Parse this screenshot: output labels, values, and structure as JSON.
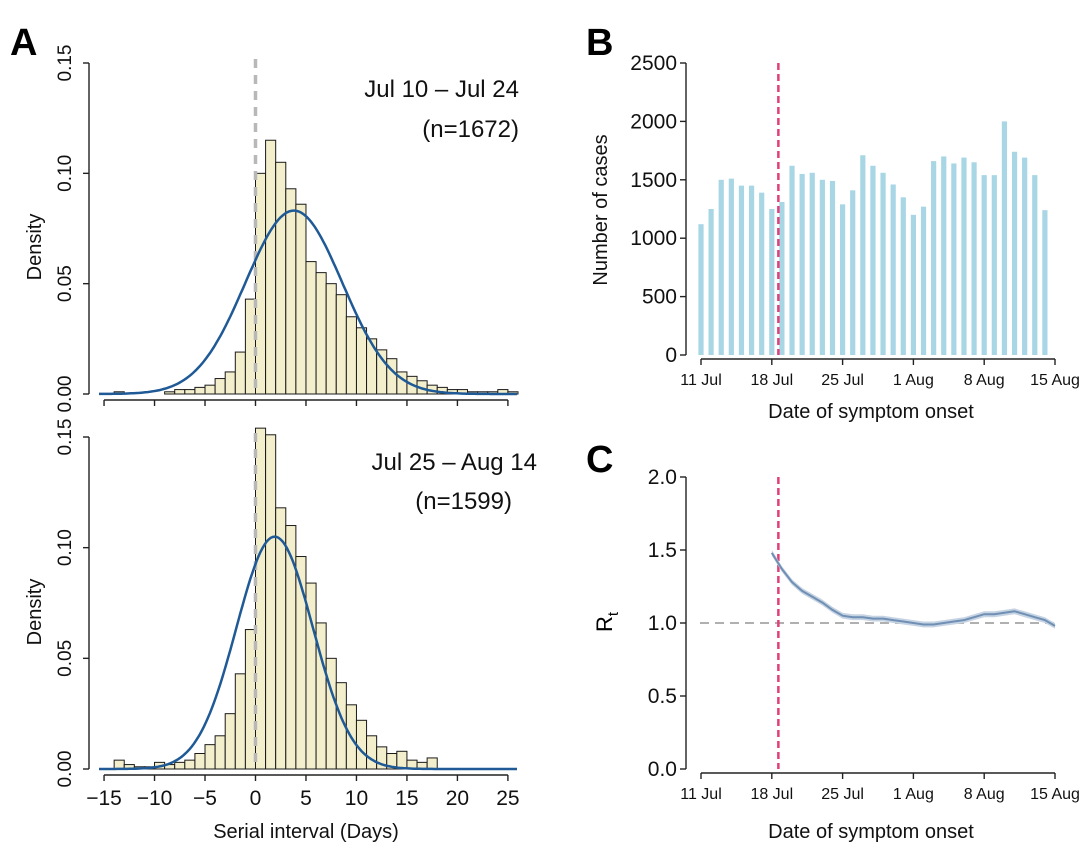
{
  "panel_labels": {
    "a": "A",
    "b": "B",
    "c": "C"
  },
  "chart_data": [
    {
      "id": "A1",
      "type": "bar",
      "panel": "A",
      "annotation": [
        "Jul 10 – Jul 24",
        "(n=1672)"
      ],
      "ylabel": "Density",
      "xlabel": "",
      "xlim": [
        -15.5,
        26
      ],
      "ylim": [
        0,
        0.15
      ],
      "yticks": [
        "0.00",
        "0.05",
        "0.10",
        "0.15"
      ],
      "xticks": [
        -15,
        -10,
        -5,
        0,
        5,
        10,
        15,
        20,
        25
      ],
      "bin_width": 1,
      "bins_left": [
        -14,
        -13,
        -12,
        -11,
        -10,
        -9,
        -8,
        -7,
        -6,
        -5,
        -4,
        -3,
        -2,
        -1,
        0,
        1,
        2,
        3,
        4,
        5,
        6,
        7,
        8,
        9,
        10,
        11,
        12,
        13,
        14,
        15,
        16,
        17,
        18,
        19,
        20,
        21,
        22,
        23,
        24,
        25
      ],
      "density": [
        0.001,
        0,
        0,
        0,
        0,
        0.001,
        0.002,
        0.002,
        0.003,
        0.004,
        0.007,
        0.01,
        0.019,
        0.043,
        0.1,
        0.115,
        0.105,
        0.093,
        0.086,
        0.06,
        0.055,
        0.05,
        0.045,
        0.035,
        0.03,
        0.025,
        0.02,
        0.016,
        0.01,
        0.008,
        0.006,
        0.004,
        0.003,
        0.002,
        0.002,
        0.001,
        0.001,
        0.001,
        0.002,
        0.001
      ],
      "fit": {
        "mean": 3.8,
        "sd": 4.8,
        "scale": 1.0
      },
      "reference_x": 0
    },
    {
      "id": "A2",
      "type": "bar",
      "panel": "A",
      "annotation": [
        "Jul 25 – Aug 14",
        "(n=1599)"
      ],
      "ylabel": "Density",
      "xlabel": "Serial interval (Days)",
      "xlim": [
        -15.5,
        26
      ],
      "ylim": [
        0,
        0.15
      ],
      "yticks": [
        "0.00",
        "0.05",
        "0.10",
        "0.15"
      ],
      "xticks": [
        -15,
        -10,
        -5,
        0,
        5,
        10,
        15,
        20,
        25
      ],
      "bin_width": 1,
      "bins_left": [
        -14,
        -13,
        -12,
        -11,
        -10,
        -9,
        -8,
        -7,
        -6,
        -5,
        -4,
        -3,
        -2,
        -1,
        0,
        1,
        2,
        3,
        4,
        5,
        6,
        7,
        8,
        9,
        10,
        11,
        12,
        13,
        14,
        15,
        16,
        17,
        18,
        19,
        20,
        21,
        22,
        23,
        24,
        25
      ],
      "density": [
        0.004,
        0.002,
        0.001,
        0.001,
        0.003,
        0.002,
        0.003,
        0.004,
        0.007,
        0.011,
        0.015,
        0.025,
        0.043,
        0.063,
        0.154,
        0.151,
        0.118,
        0.11,
        0.096,
        0.084,
        0.066,
        0.05,
        0.039,
        0.029,
        0.022,
        0.015,
        0.01,
        0.007,
        0.008,
        0.004,
        0.003,
        0.005,
        0,
        0,
        0,
        0,
        0,
        0,
        0,
        0
      ],
      "fit": {
        "mean": 1.9,
        "sd": 3.8,
        "scale": 1.0
      },
      "reference_x": 0
    },
    {
      "id": "B",
      "type": "bar",
      "panel": "B",
      "ylabel": "Number of cases",
      "xlabel": "Date of symptom onset",
      "ylim": [
        0,
        2500
      ],
      "yticks": [
        0,
        500,
        1000,
        1500,
        2000,
        2500
      ],
      "xtick_labels": [
        "11 Jul",
        "18 Jul",
        "25 Jul",
        "1 Aug",
        "8 Aug",
        "15 Aug"
      ],
      "dates": [
        "10 Jul",
        "11 Jul",
        "12 Jul",
        "13 Jul",
        "14 Jul",
        "15 Jul",
        "16 Jul",
        "17 Jul",
        "18 Jul",
        "19 Jul",
        "20 Jul",
        "21 Jul",
        "22 Jul",
        "23 Jul",
        "24 Jul",
        "25 Jul",
        "26 Jul",
        "27 Jul",
        "28 Jul",
        "29 Jul",
        "30 Jul",
        "31 Jul",
        "1 Aug",
        "2 Aug",
        "3 Aug",
        "4 Aug",
        "5 Aug",
        "6 Aug",
        "7 Aug",
        "8 Aug",
        "9 Aug",
        "10 Aug",
        "11 Aug",
        "12 Aug",
        "13 Aug",
        "14 Aug"
      ],
      "values": [
        1120,
        1250,
        1500,
        1510,
        1450,
        1450,
        1390,
        1250,
        1310,
        1620,
        1550,
        1560,
        1500,
        1490,
        1290,
        1410,
        1710,
        1620,
        1560,
        1460,
        1350,
        1200,
        1270,
        1660,
        1700,
        1640,
        1690,
        1650,
        1540,
        1540,
        2000,
        1740,
        1690,
        1540,
        1240,
        0
      ],
      "bar_color": "#a9d6e5",
      "marker_date": "19 Jul",
      "marker_color": "#e0407a"
    },
    {
      "id": "C",
      "type": "line",
      "panel": "C",
      "ylabel_main": "R",
      "ylabel_sub": "t",
      "xlabel": "Date of symptom onset",
      "ylim": [
        0,
        2.0
      ],
      "yticks": [
        "0.0",
        "0.5",
        "1.0",
        "1.5",
        "2.0"
      ],
      "xtick_labels": [
        "11 Jul",
        "18 Jul",
        "25 Jul",
        "1 Aug",
        "8 Aug",
        "15 Aug"
      ],
      "dates": [
        "17 Jul",
        "18 Jul",
        "19 Jul",
        "20 Jul",
        "21 Jul",
        "22 Jul",
        "23 Jul",
        "24 Jul",
        "25 Jul",
        "26 Jul",
        "27 Jul",
        "28 Jul",
        "29 Jul",
        "30 Jul",
        "31 Jul",
        "1 Aug",
        "2 Aug",
        "3 Aug",
        "4 Aug",
        "5 Aug",
        "6 Aug",
        "7 Aug",
        "8 Aug",
        "9 Aug",
        "10 Aug",
        "11 Aug",
        "12 Aug",
        "13 Aug",
        "14 Aug"
      ],
      "values": [
        1.48,
        1.37,
        1.28,
        1.22,
        1.18,
        1.14,
        1.09,
        1.05,
        1.04,
        1.04,
        1.03,
        1.03,
        1.02,
        1.01,
        1.0,
        0.99,
        0.99,
        1.0,
        1.01,
        1.02,
        1.04,
        1.06,
        1.06,
        1.07,
        1.08,
        1.06,
        1.04,
        1.02,
        0.98
      ],
      "reference_y": 1.0,
      "line_color": "#6f8fb4",
      "marker_date": "19 Jul",
      "marker_color": "#e0407a"
    }
  ]
}
